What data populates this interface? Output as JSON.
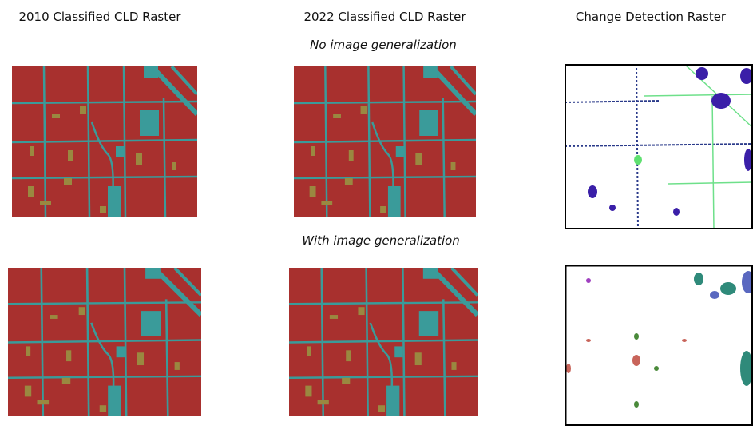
{
  "columns": [
    "2010 Classified CLD Raster",
    "2022 Classified CLD Raster",
    "Change Detection Raster"
  ],
  "rows": [
    {
      "label": "No image generalization"
    },
    {
      "label": "With image generalization"
    }
  ]
}
